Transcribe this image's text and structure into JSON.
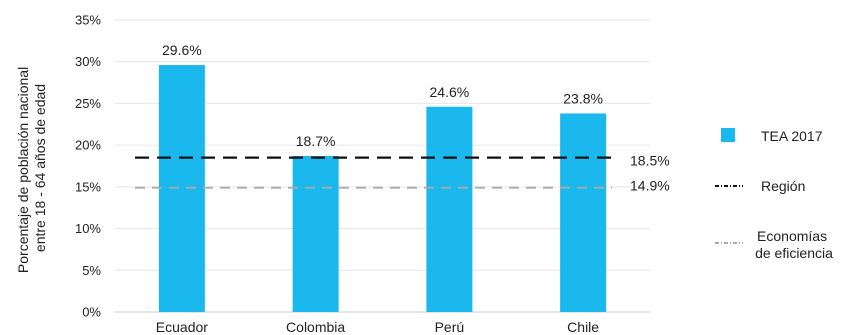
{
  "chart_data": {
    "type": "bar",
    "ylabel_lines": [
      "Porcentaje de población nacional",
      "entre 18 - 64 años de edad"
    ],
    "categories": [
      "Ecuador",
      "Colombia",
      "Perú",
      "Chile"
    ],
    "series": [
      {
        "name": "TEA 2017",
        "color": "#1ab8ec",
        "values": [
          29.6,
          18.7,
          24.6,
          23.8
        ],
        "labels": [
          "29.6%",
          "18.7%",
          "24.6%",
          "23.8%"
        ]
      }
    ],
    "reference_lines": [
      {
        "name": "Región",
        "value": 18.5,
        "label": "18.5%",
        "color": "#111111",
        "style": "dashed"
      },
      {
        "name": "Economías de eficiencia",
        "legend_lines": [
          "Economías",
          "de eficiencia"
        ],
        "value": 14.9,
        "label": "14.9%",
        "color": "#aaaaaa",
        "style": "dashed"
      }
    ],
    "ylim": [
      0,
      35
    ],
    "yticks": [
      0,
      5,
      10,
      15,
      20,
      25,
      30,
      35
    ],
    "ytick_labels": [
      "0%",
      "5%",
      "10%",
      "15%",
      "20%",
      "25%",
      "30%",
      "35%"
    ],
    "grid": true,
    "legend_position": "right"
  }
}
